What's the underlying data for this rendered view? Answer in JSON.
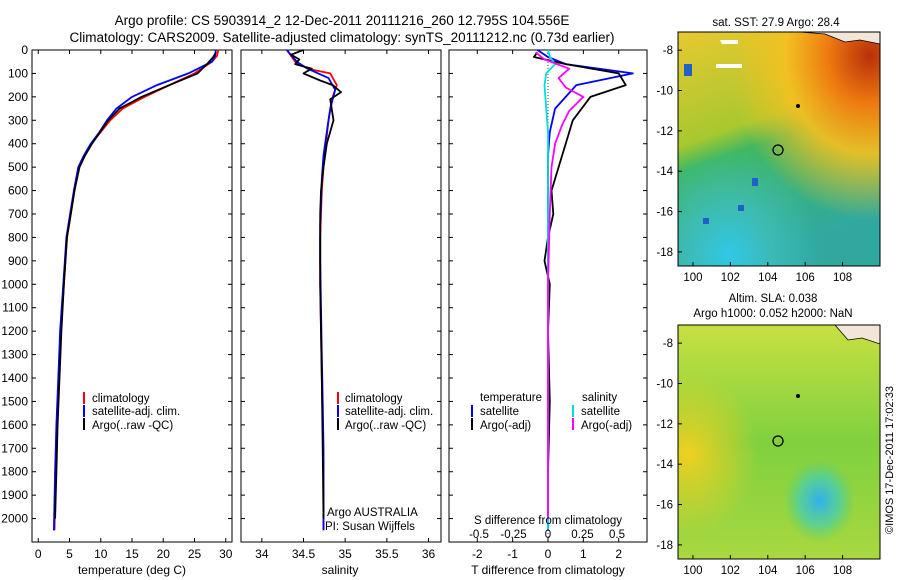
{
  "header": {
    "title_line1": "Argo profile: CS 5903914_2 12-Dec-2011 20111216_260 12.795S 104.556E",
    "title_line2": "Climatology: CARS2009. Satellite-adjusted climatology: synTS_20111212.nc (0.73d earlier)"
  },
  "side_text": "©IMOS 17-Dec-2011 17:02:33",
  "chart_data": [
    {
      "id": "temperature",
      "type": "line",
      "xlabel": "temperature (deg C)",
      "ylim": [
        2100,
        0
      ],
      "xlim": [
        -1,
        31
      ],
      "xticks": [
        0,
        5,
        10,
        15,
        20,
        25,
        30
      ],
      "yticks": [
        0,
        100,
        200,
        300,
        400,
        500,
        600,
        700,
        800,
        900,
        1000,
        1100,
        1200,
        1300,
        1400,
        1500,
        1600,
        1700,
        1800,
        1900,
        2000
      ],
      "legend": {
        "placement": "lower-middle",
        "entries": [
          "climatology",
          "satellite-adj. clim.",
          "Argo(..raw -QC)"
        ]
      },
      "series": [
        {
          "name": "climatology",
          "color": "#ff0000",
          "x": [
            28.8,
            28.6,
            27.8,
            25,
            21,
            17,
            13.5,
            11.5,
            10,
            8.5,
            7.4,
            6.5,
            5.8,
            5.2,
            4.6,
            4.1,
            3.6,
            3.3,
            3.0,
            2.8,
            2.6
          ],
          "y": [
            0,
            25,
            50,
            100,
            150,
            200,
            250,
            300,
            350,
            400,
            450,
            500,
            600,
            700,
            800,
            1000,
            1200,
            1400,
            1600,
            1800,
            2050
          ]
        },
        {
          "name": "satellite-adj. clim.",
          "color": "#0000ff",
          "x": [
            28.4,
            28.3,
            27.8,
            24,
            19,
            15,
            12.5,
            11,
            9.8,
            8.4,
            7.3,
            6.4,
            5.7,
            5.1,
            4.5,
            4.0,
            3.5,
            3.2,
            2.9,
            2.7,
            2.5
          ],
          "y": [
            0,
            25,
            50,
            100,
            150,
            200,
            250,
            300,
            350,
            400,
            450,
            500,
            600,
            700,
            800,
            1000,
            1200,
            1400,
            1600,
            1800,
            2050
          ]
        },
        {
          "name": "Argo(..raw -QC)",
          "color": "#000000",
          "x": [
            28.4,
            28,
            27,
            25.5,
            21,
            16.5,
            13,
            11.2,
            9.9,
            8.6,
            7.5,
            6.6,
            5.8,
            5.2,
            4.6,
            4.1,
            3.7,
            3.4,
            3.1,
            2.9,
            2.7
          ],
          "y": [
            10,
            30,
            60,
            100,
            150,
            200,
            250,
            300,
            350,
            400,
            450,
            500,
            600,
            700,
            800,
            1000,
            1200,
            1400,
            1600,
            1800,
            2000
          ]
        }
      ]
    },
    {
      "id": "salinity",
      "type": "line",
      "xlabel": "salinity",
      "ylim": [
        2100,
        0
      ],
      "xlim": [
        33.75,
        36.15
      ],
      "xticks": [
        34,
        34.5,
        35,
        35.5,
        36
      ],
      "xticklabels": [
        "34",
        "34.5",
        "35",
        "35.5",
        "36"
      ],
      "legend": {
        "placement": "lower-middle",
        "entries": [
          "climatology",
          "satellite-adj. clim.",
          "Argo(..raw -QC)"
        ]
      },
      "annotation_line1": "Argo AUSTRALIA",
      "annotation_line2": "PI: Susan Wijffels",
      "series": [
        {
          "name": "climatology",
          "color": "#ff0000",
          "x": [
            34.3,
            34.4,
            34.55,
            34.82,
            34.9,
            34.85,
            34.8,
            34.77,
            34.74,
            34.72,
            34.71,
            34.7,
            34.7,
            34.71,
            34.72,
            34.73,
            34.74,
            34.74,
            34.74,
            34.74
          ],
          "y": [
            0,
            50,
            80,
            100,
            150,
            200,
            300,
            400,
            500,
            600,
            700,
            800,
            1000,
            1200,
            1400,
            1600,
            1800,
            1900,
            2000,
            2050
          ]
        },
        {
          "name": "satellite-adj. clim.",
          "color": "#0000ff",
          "x": [
            34.3,
            34.42,
            34.55,
            34.8,
            34.88,
            34.82,
            34.78,
            34.74,
            34.72,
            34.71,
            34.7,
            34.7,
            34.71,
            34.72,
            34.73,
            34.74,
            34.74,
            34.74
          ],
          "y": [
            0,
            50,
            80,
            120,
            170,
            250,
            350,
            450,
            550,
            650,
            750,
            900,
            1100,
            1300,
            1500,
            1700,
            1900,
            2050
          ]
        },
        {
          "name": "Argo(..raw -QC)",
          "color": "#000000",
          "x": [
            34.5,
            34.35,
            34.45,
            34.4,
            34.6,
            34.5,
            34.7,
            34.85,
            34.95,
            34.82,
            34.86,
            34.78,
            34.74,
            34.71,
            34.7,
            34.7,
            34.7,
            34.71,
            34.72,
            34.73,
            34.74
          ],
          "y": [
            0,
            20,
            40,
            60,
            80,
            100,
            130,
            150,
            180,
            210,
            300,
            400,
            500,
            600,
            700,
            800,
            1000,
            1200,
            1400,
            1700,
            2000
          ]
        }
      ]
    },
    {
      "id": "difference",
      "type": "line",
      "xlabel": "T difference from climatology",
      "xlabel_top": "S difference from climatology",
      "ylim": [
        2100,
        0
      ],
      "xlim": [
        -2.8,
        2.8
      ],
      "xticks": [
        -2,
        -1,
        0,
        1,
        2
      ],
      "xticklabels": [
        "-2",
        "-1",
        "0",
        "1",
        "2"
      ],
      "sticklabels": [
        "-0.5",
        "-0.25",
        "0",
        "0.25",
        "0.5"
      ],
      "legend": {
        "placement": "lower-middle",
        "temperature_title": "temperature",
        "salinity_title": "salinity",
        "entries": [
          "satellite",
          "Argo(-adj)",
          "satellite",
          "Argo(-adj)"
        ]
      },
      "series": [
        {
          "name": "temperature satellite",
          "color": "#0000ff",
          "x": [
            -0.3,
            0,
            0.5,
            2.4,
            0.8,
            0.2,
            0.05,
            0,
            0,
            0,
            0,
            0,
            0,
            0,
            0,
            0
          ],
          "y": [
            0,
            30,
            60,
            100,
            150,
            250,
            350,
            450,
            600,
            800,
            1000,
            1200,
            1400,
            1600,
            1800,
            2050
          ]
        },
        {
          "name": "temperature Argo(-adj)",
          "color": "#000000",
          "x": [
            -0.3,
            -0.4,
            0.5,
            2.0,
            2.2,
            1.2,
            0.7,
            0.5,
            0.3,
            0.1,
            0.15,
            0,
            -0.1,
            0.05,
            0,
            0.05,
            0,
            0
          ],
          "y": [
            10,
            30,
            60,
            100,
            150,
            200,
            300,
            400,
            500,
            600,
            700,
            800,
            900,
            1000,
            1200,
            1500,
            1800,
            2000
          ]
        },
        {
          "name": "salinity satellite",
          "color": "#00dddd",
          "x": [
            0,
            0.05,
            0.2,
            -0.05,
            -0.1,
            -0.05,
            0,
            0,
            0,
            0,
            0
          ],
          "y": [
            0,
            30,
            60,
            100,
            150,
            250,
            350,
            500,
            800,
            1200,
            2050
          ]
        },
        {
          "name": "salinity Argo(-adj)",
          "color": "#ff00ff",
          "x": [
            -0.35,
            -0.1,
            0.6,
            0.3,
            0.5,
            1.0,
            0.6,
            0.4,
            0.2,
            0.1,
            0.05,
            0,
            0
          ],
          "y": [
            10,
            40,
            80,
            120,
            160,
            200,
            260,
            320,
            400,
            500,
            700,
            1000,
            2000
          ]
        }
      ]
    }
  ],
  "maps": [
    {
      "id": "sst-map",
      "title": "sat. SST: 27.9 Argo: 28.4",
      "xticks": [
        "100",
        "102",
        "104",
        "106",
        "108"
      ],
      "yticks": [
        "-8",
        "-10",
        "-12",
        "-14",
        "-16",
        "-18"
      ]
    },
    {
      "id": "sla-map",
      "title_line1": "Altim. SLA: 0.038",
      "title_line2": "Argo h1000: 0.052 h2000: NaN",
      "xticks": [
        "100",
        "102",
        "104",
        "106",
        "108"
      ],
      "yticks": [
        "-8",
        "-10",
        "-12",
        "-14",
        "-16",
        "-18"
      ]
    }
  ]
}
